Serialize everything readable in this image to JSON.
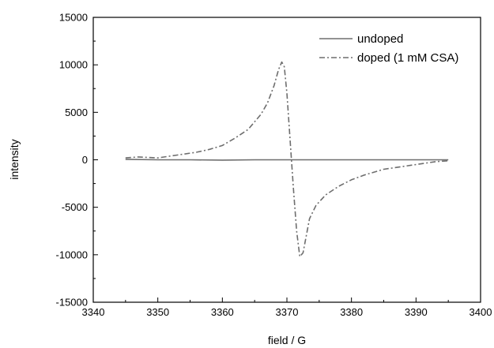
{
  "chart_data": {
    "type": "line",
    "xlabel": "field / G",
    "ylabel": "intensity",
    "xlim": [
      3340,
      3400
    ],
    "ylim": [
      -15000,
      15000
    ],
    "xticks": [
      3340,
      3350,
      3360,
      3370,
      3380,
      3390,
      3400
    ],
    "yticks": [
      -15000,
      -10000,
      -5000,
      0,
      5000,
      10000,
      15000
    ],
    "x_minor_step": 5,
    "y_minor_step": 2500,
    "grid": false,
    "legend_position": "top-right",
    "series": [
      {
        "name": "undoped",
        "style": "solid",
        "color": "#6e6e6e",
        "x": [
          3345,
          3350,
          3355,
          3360,
          3365,
          3370,
          3375,
          3380,
          3385,
          3390,
          3395
        ],
        "y": [
          50,
          0,
          0,
          -30,
          0,
          0,
          0,
          0,
          0,
          0,
          0
        ]
      },
      {
        "name": "doped (1 mM CSA)",
        "style": "dash-dot",
        "color": "#6e6e6e",
        "x": [
          3345,
          3347,
          3350,
          3353,
          3356,
          3358,
          3360,
          3362,
          3364,
          3366,
          3367,
          3368,
          3368.7,
          3369.2,
          3369.6,
          3370.0,
          3370.5,
          3371.0,
          3371.5,
          3372.0,
          3372.5,
          3373.0,
          3373.5,
          3374.5,
          3376,
          3378,
          3380,
          3382,
          3385,
          3388,
          3391,
          3393,
          3395
        ],
        "y": [
          200,
          300,
          200,
          500,
          800,
          1100,
          1500,
          2300,
          3200,
          4800,
          6000,
          7800,
          9500,
          10300,
          9800,
          7000,
          2000,
          -3000,
          -7500,
          -10200,
          -9800,
          -8000,
          -6200,
          -4800,
          -3700,
          -2800,
          -2100,
          -1600,
          -1000,
          -700,
          -400,
          -200,
          -100
        ]
      }
    ]
  }
}
